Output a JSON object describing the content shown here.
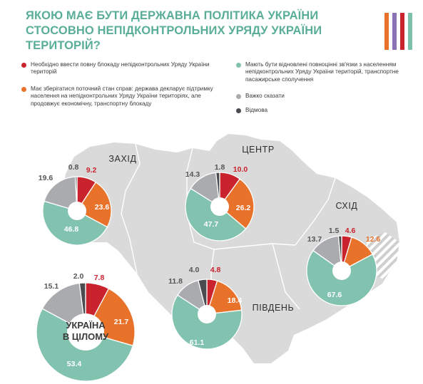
{
  "title": "ЯКОЮ МАЄ БУТИ ДЕРЖАВНА ПОЛІТИКА УКРАЇНИ СТОСОВНО НЕПІДКОНТРОЛЬНИХ УРЯДУ УКРАЇНИ ТЕРИТОРІЙ?",
  "colors": {
    "title": "#5aae98",
    "blockade": "#c9232e",
    "current": "#e8722a",
    "restore": "#82c3b0",
    "hard_to_say": "#a9abaf",
    "refusal": "#4a4c4f",
    "map": "#dadadb",
    "bars": [
      "#e8722a",
      "#8a73b5",
      "#c9232e",
      "#7dc1ad"
    ]
  },
  "legend": {
    "blockade": "Необхідно ввести повну блокаду непідконтрольних Уряду України територій",
    "current": "Має зберігатися поточний стан справ: держава декларує підтримку населення на непідконтрольних Уряду України територіях, але продовжує економічну, транспортну блокаду",
    "restore": "Мають бути відновлені повноцінні зв'язки з населенням непідконтрольних Уряду України територій, транспортне пасажирське сполучення",
    "hard_to_say": "Важко сказати",
    "refusal": "Відмова"
  },
  "chart_data": {
    "type": "pie",
    "categories": [
      "Необхідно ввести повну блокаду непідконтрольних Уряду України територій",
      "Має зберігатися поточний стан справ: держава декларує підтримку населення на непідконтрольних Уряду України територіях, але продовжує економічну, транспортну блокаду",
      "Мають бути відновлені повноцінні зв'язки з населенням непідконтрольних Уряду України територій, транспортне пасажирське сполучення",
      "Важко сказати",
      "Відмова"
    ],
    "charts": [
      {
        "key": "west",
        "label": "ЗАХІД",
        "values": [
          9.2,
          23.6,
          46.8,
          19.6,
          0.8
        ]
      },
      {
        "key": "center",
        "label": "ЦЕНТР",
        "values": [
          10.0,
          26.2,
          47.7,
          14.3,
          1.8
        ]
      },
      {
        "key": "east",
        "label": "СХІД",
        "values": [
          4.6,
          12.6,
          67.6,
          13.7,
          1.5
        ]
      },
      {
        "key": "south",
        "label": "ПІВДЕНЬ",
        "values": [
          4.8,
          18.4,
          61.1,
          11.8,
          4.0
        ]
      },
      {
        "key": "ukraine",
        "label": "УКРАЇНА В ЦІЛОМУ",
        "label_lines": [
          "УКРАЇНА",
          "В ЦІЛОМУ"
        ],
        "values": [
          7.8,
          21.7,
          53.4,
          15.1,
          2.0
        ]
      }
    ]
  }
}
